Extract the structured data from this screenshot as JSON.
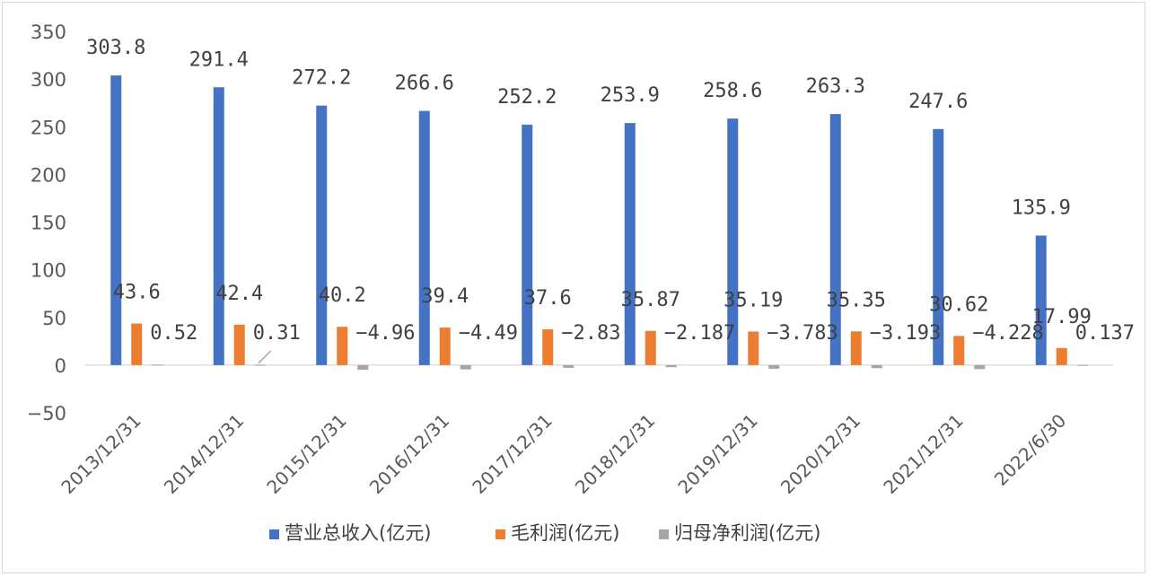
{
  "chart_data": {
    "type": "bar",
    "categories": [
      "2013/12/31",
      "2014/12/31",
      "2015/12/31",
      "2016/12/31",
      "2017/12/31",
      "2018/12/31",
      "2019/12/31",
      "2020/12/31",
      "2021/12/31",
      "2022/6/30"
    ],
    "series": [
      {
        "name": "营业总收入(亿元)",
        "color": "#4472c4",
        "values": [
          303.8,
          291.4,
          272.2,
          266.6,
          252.2,
          253.9,
          258.6,
          263.3,
          247.6,
          135.9
        ],
        "labels": [
          "303.8",
          "291.4",
          "272.2",
          "266.6",
          "252.2",
          "253.9",
          "258.6",
          "263.3",
          "247.6",
          "135.9"
        ]
      },
      {
        "name": "毛利润(亿元)",
        "color": "#ed7d31",
        "values": [
          43.6,
          42.4,
          40.2,
          39.4,
          37.6,
          35.87,
          35.19,
          35.35,
          30.62,
          17.99
        ],
        "labels": [
          "43.6",
          "42.4",
          "40.2",
          "39.4",
          "37.6",
          "35.87",
          "35.19",
          "35.35",
          "30.62",
          "17.99"
        ]
      },
      {
        "name": "归母净利润(亿元)",
        "color": "#a5a5a5",
        "values": [
          0.52,
          0.31,
          -4.96,
          -4.49,
          -2.83,
          -2.187,
          -3.783,
          -3.193,
          -4.228,
          0.137
        ],
        "labels": [
          "0.52",
          "0.31",
          "−4.96",
          "−4.49",
          "−2.83",
          "−2.187",
          "−3.783",
          "−3.193",
          "−4.228",
          "0.137"
        ]
      }
    ],
    "ylim": [
      -50,
      350
    ],
    "yticks": [
      350,
      300,
      250,
      200,
      150,
      100,
      50,
      0,
      -50
    ],
    "ytick_labels": [
      "350",
      "300",
      "250",
      "200",
      "150",
      "100",
      "50",
      "0",
      "−50"
    ],
    "title": "",
    "xlabel": "",
    "ylabel": "",
    "grid": false,
    "legend_position": "bottom"
  }
}
